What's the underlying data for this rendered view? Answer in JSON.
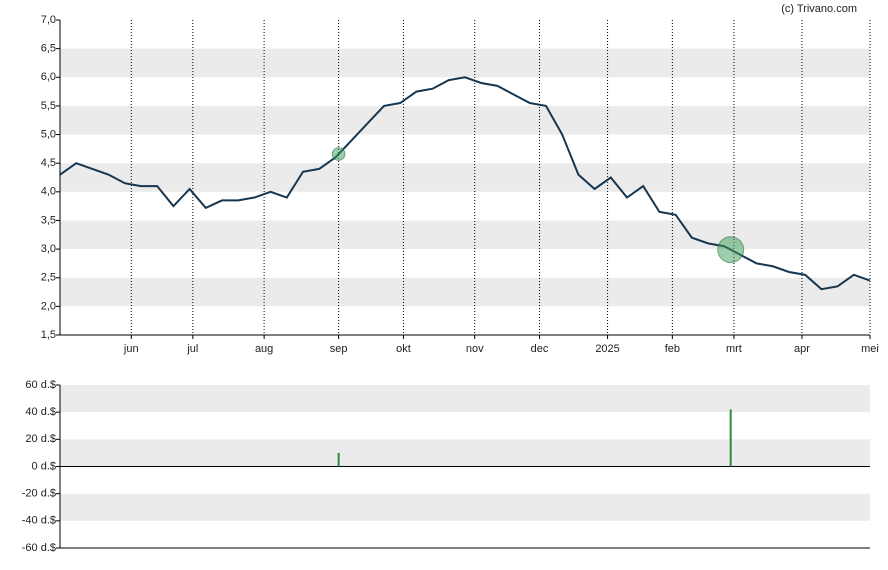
{
  "source": "(c) Trivano.com",
  "chart_data": [
    {
      "type": "line",
      "x": [
        0,
        5,
        10,
        15,
        20,
        25,
        30,
        35,
        40,
        45,
        50,
        55,
        60,
        65,
        70,
        75,
        80,
        85,
        90,
        95,
        100,
        105,
        110,
        115,
        120,
        125,
        130,
        135,
        140,
        145,
        150,
        155,
        160,
        165,
        170,
        175,
        180,
        185,
        190,
        195,
        200,
        205,
        210,
        215,
        220,
        225,
        230,
        235,
        240,
        245,
        250
      ],
      "series": [
        {
          "color": "#17364f",
          "values": [
            4.3,
            4.5,
            4.4,
            4.3,
            4.15,
            4.1,
            4.1,
            3.75,
            4.05,
            3.72,
            3.85,
            3.85,
            3.9,
            4.0,
            3.9,
            4.35,
            4.4,
            4.6,
            4.9,
            5.2,
            5.5,
            5.55,
            5.75,
            5.8,
            5.95,
            6.0,
            5.9,
            5.85,
            5.7,
            5.55,
            5.5,
            5.0,
            4.3,
            4.05,
            4.25,
            3.9,
            4.1,
            3.65,
            3.6,
            3.2,
            3.1,
            3.05,
            2.9,
            2.75,
            2.7,
            2.6,
            2.55,
            2.3,
            2.35,
            2.55,
            2.45
          ]
        }
      ],
      "xlim": [
        0,
        250
      ],
      "xticks": [
        {
          "value": 22,
          "label": "jun"
        },
        {
          "value": 41,
          "label": "jul"
        },
        {
          "value": 63,
          "label": "aug"
        },
        {
          "value": 86,
          "label": "sep"
        },
        {
          "value": 106,
          "label": "okt"
        },
        {
          "value": 128,
          "label": "nov"
        },
        {
          "value": 148,
          "label": "dec"
        },
        {
          "value": 169,
          "label": "2025"
        },
        {
          "value": 189,
          "label": "feb"
        },
        {
          "value": 208,
          "label": "mrt"
        },
        {
          "value": 229,
          "label": "apr"
        },
        {
          "value": 250,
          "label": "mei"
        }
      ],
      "ylim": [
        1.5,
        7.0
      ],
      "yticks": [
        {
          "value": 1.5,
          "label": "1,5"
        },
        {
          "value": 2.0,
          "label": "2,0"
        },
        {
          "value": 2.5,
          "label": "2,5"
        },
        {
          "value": 3.0,
          "label": "3,0"
        },
        {
          "value": 3.5,
          "label": "3,5"
        },
        {
          "value": 4.0,
          "label": "4,0"
        },
        {
          "value": 4.5,
          "label": "4,5"
        },
        {
          "value": 5.0,
          "label": "5,0"
        },
        {
          "value": 5.5,
          "label": "5,5"
        },
        {
          "value": 6.0,
          "label": "6,0"
        },
        {
          "value": 6.5,
          "label": "6,5"
        },
        {
          "value": 7.0,
          "label": "7,0"
        }
      ],
      "grid": true
    },
    {
      "type": "bar",
      "x": [
        86,
        207
      ],
      "values": [
        10,
        42
      ],
      "color": "#2e8b3e",
      "xlim": [
        0,
        250
      ],
      "ylim": [
        -60,
        60
      ],
      "yticks": [
        {
          "value": -60,
          "label": "-60 d.$"
        },
        {
          "value": -40,
          "label": "-40 d.$"
        },
        {
          "value": -20,
          "label": "-20 d.$"
        },
        {
          "value": 0,
          "label": "0 d.$"
        },
        {
          "value": 20,
          "label": "20 d.$"
        },
        {
          "value": 40,
          "label": "40 d.$"
        },
        {
          "value": 60,
          "label": "60 d.$"
        }
      ]
    }
  ]
}
